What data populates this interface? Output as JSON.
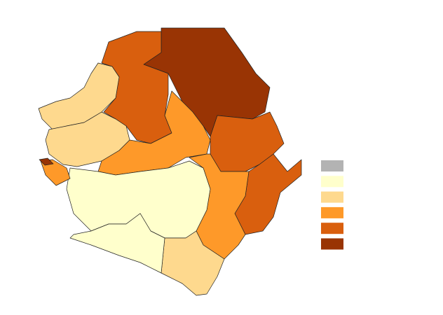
{
  "map": {
    "legend": {
      "colors": [
        "#b3b3b3",
        "#ffffcc",
        "#fed98e",
        "#fe9929",
        "#d95f0e",
        "#993404"
      ]
    },
    "regions": [
      {
        "color": "#993404"
      },
      {
        "color": "#d95f0e"
      },
      {
        "color": "#fed98e"
      },
      {
        "color": "#fed98e"
      },
      {
        "color": "#fe9929"
      },
      {
        "color": "#d95f0e"
      },
      {
        "color": "#d95f0e"
      },
      {
        "color": "#fe9929"
      },
      {
        "color": "#ffffcc"
      },
      {
        "color": "#fed98e"
      },
      {
        "color": "#ffffcc"
      },
      {
        "color": "#fe9929"
      },
      {
        "color": "#993404"
      }
    ]
  }
}
